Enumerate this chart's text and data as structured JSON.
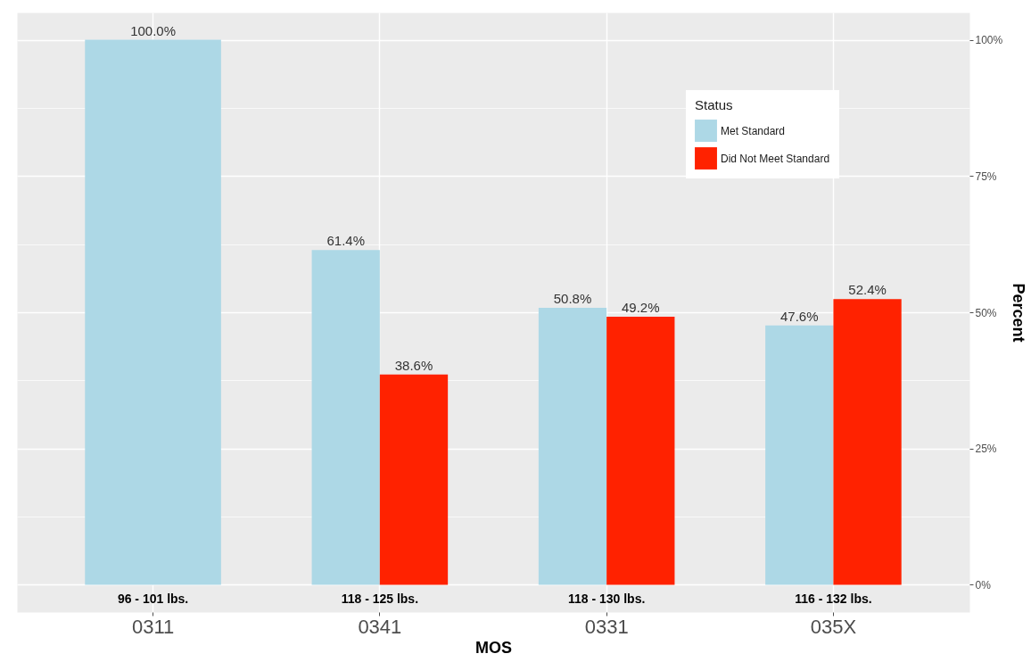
{
  "chart_data": {
    "type": "bar",
    "xlabel": "MOS",
    "ylabel": "Percent",
    "legend_title": "Status",
    "categories": [
      "0311",
      "0341",
      "0331",
      "035X"
    ],
    "series": [
      {
        "name": "Met Standard",
        "color": "#add8e6",
        "values": [
          100,
          61.4,
          50.8,
          47.6
        ],
        "value_labels": [
          "100.0%",
          "61.4%",
          "50.8%",
          "47.6%"
        ]
      },
      {
        "name": "Did Not Meet Standard",
        "color": "#ff2200",
        "values": [
          null,
          38.6,
          49.2,
          52.4
        ],
        "value_labels": [
          null,
          "38.6%",
          "49.2%",
          "52.4%"
        ]
      }
    ],
    "ylim": [
      -5,
      105
    ],
    "yticks": [
      {
        "value": 0,
        "label": "0%"
      },
      {
        "value": 12.5,
        "label": null
      },
      {
        "value": 25,
        "label": "25%"
      },
      {
        "value": 37.5,
        "label": null
      },
      {
        "value": 50,
        "label": "50%"
      },
      {
        "value": 62.5,
        "label": null
      },
      {
        "value": 75,
        "label": "75%"
      },
      {
        "value": 87.5,
        "label": null
      },
      {
        "value": 100,
        "label": "100%"
      }
    ],
    "grid": true,
    "legend": "top right",
    "annotations": [
      "96 - 101 lbs.",
      "118 - 125 lbs.",
      "118 - 130 lbs.",
      "116 - 132 lbs."
    ]
  }
}
